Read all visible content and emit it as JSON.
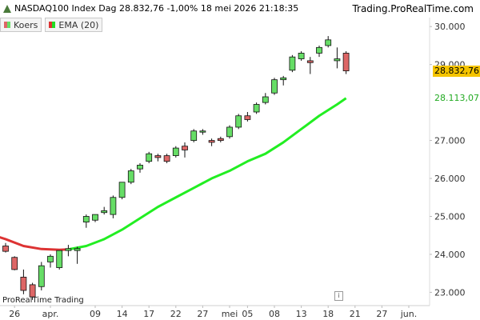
{
  "header": {
    "instrument": "NASDAQ100 Index Dag",
    "last": "28.832,76",
    "change": "-1,00%",
    "datetime": "18 mei 2026 21:18:35",
    "site": "Trading.ProRealTime.com"
  },
  "legend": [
    {
      "label": "Koers",
      "color": "#5bd15b"
    },
    {
      "label": "EMA (20)",
      "color": "#22dd22"
    }
  ],
  "footer": "ProRealTime Trading",
  "info_icon": "info-icon",
  "price_tags": {
    "last": {
      "text": "28.832,76",
      "value": 28832.76,
      "bg": "#f5c400",
      "fg": "#000000"
    },
    "ema": {
      "text": "28.113,07",
      "value": 28113.07,
      "bg": "#ffffff",
      "fg": "#22aa22"
    }
  },
  "colors": {
    "up": "#66dd66",
    "down": "#dd6666",
    "ema_up": "#22ee22",
    "ema_down": "#dd3333",
    "text": "#333333"
  },
  "chart_data": {
    "type": "candlestick",
    "ylim": [
      22750,
      30500
    ],
    "yticks": [
      {
        "v": 23000,
        "t": "23.000"
      },
      {
        "v": 24000,
        "t": "24.000"
      },
      {
        "v": 25000,
        "t": "25.000"
      },
      {
        "v": 26000,
        "t": "26.000"
      },
      {
        "v": 27000,
        "t": "27.000"
      },
      {
        "v": 29000,
        "t": "29.000"
      },
      {
        "v": 30000,
        "t": "30.000"
      }
    ],
    "xticks": [
      {
        "i": 1,
        "t": "26"
      },
      {
        "i": 5,
        "t": "apr."
      },
      {
        "i": 10,
        "t": "09"
      },
      {
        "i": 13,
        "t": "14"
      },
      {
        "i": 16,
        "t": "17"
      },
      {
        "i": 19,
        "t": "22"
      },
      {
        "i": 22,
        "t": "27"
      },
      {
        "i": 25,
        "t": "mei"
      },
      {
        "i": 27,
        "t": "05"
      },
      {
        "i": 30,
        "t": "08"
      },
      {
        "i": 33,
        "t": "13"
      },
      {
        "i": 36,
        "t": "18"
      },
      {
        "i": 39,
        "t": "21"
      },
      {
        "i": 42,
        "t": "27"
      },
      {
        "i": 45,
        "t": "jun."
      }
    ],
    "candles": [
      {
        "i": 0,
        "o": 24220,
        "h": 24300,
        "l": 24050,
        "c": 24080
      },
      {
        "i": 1,
        "o": 23920,
        "h": 23950,
        "l": 23580,
        "c": 23600
      },
      {
        "i": 2,
        "o": 23400,
        "h": 23600,
        "l": 22950,
        "c": 23050
      },
      {
        "i": 3,
        "o": 23200,
        "h": 23250,
        "l": 22800,
        "c": 22880
      },
      {
        "i": 4,
        "o": 23150,
        "h": 23800,
        "l": 23050,
        "c": 23700
      },
      {
        "i": 5,
        "o": 23800,
        "h": 24000,
        "l": 23650,
        "c": 23950
      },
      {
        "i": 6,
        "o": 23650,
        "h": 24100,
        "l": 23600,
        "c": 24100
      },
      {
        "i": 7,
        "o": 24100,
        "h": 24250,
        "l": 23950,
        "c": 24150
      },
      {
        "i": 8,
        "o": 24100,
        "h": 24200,
        "l": 23750,
        "c": 24150
      },
      {
        "i": 9,
        "o": 24850,
        "h": 25050,
        "l": 24700,
        "c": 25000
      },
      {
        "i": 10,
        "o": 24900,
        "h": 25050,
        "l": 24850,
        "c": 25050
      },
      {
        "i": 11,
        "o": 25100,
        "h": 25250,
        "l": 25050,
        "c": 25150
      },
      {
        "i": 12,
        "o": 25050,
        "h": 25550,
        "l": 24950,
        "c": 25500
      },
      {
        "i": 13,
        "o": 25500,
        "h": 25900,
        "l": 25450,
        "c": 25900
      },
      {
        "i": 14,
        "o": 25900,
        "h": 26250,
        "l": 25850,
        "c": 26200
      },
      {
        "i": 15,
        "o": 26250,
        "h": 26400,
        "l": 26150,
        "c": 26350
      },
      {
        "i": 16,
        "o": 26450,
        "h": 26700,
        "l": 26400,
        "c": 26650
      },
      {
        "i": 17,
        "o": 26600,
        "h": 26650,
        "l": 26450,
        "c": 26550
      },
      {
        "i": 18,
        "o": 26600,
        "h": 26650,
        "l": 26400,
        "c": 26450
      },
      {
        "i": 19,
        "o": 26600,
        "h": 26850,
        "l": 26550,
        "c": 26800
      },
      {
        "i": 20,
        "o": 26850,
        "h": 26950,
        "l": 26550,
        "c": 26750
      },
      {
        "i": 21,
        "o": 27000,
        "h": 27300,
        "l": 26950,
        "c": 27250
      },
      {
        "i": 22,
        "o": 27250,
        "h": 27300,
        "l": 27150,
        "c": 27250
      },
      {
        "i": 23,
        "o": 27000,
        "h": 27050,
        "l": 26850,
        "c": 26950
      },
      {
        "i": 24,
        "o": 27050,
        "h": 27100,
        "l": 26950,
        "c": 27000
      },
      {
        "i": 25,
        "o": 27100,
        "h": 27400,
        "l": 27050,
        "c": 27350
      },
      {
        "i": 26,
        "o": 27350,
        "h": 27700,
        "l": 27300,
        "c": 27650
      },
      {
        "i": 27,
        "o": 27650,
        "h": 27750,
        "l": 27500,
        "c": 27550
      },
      {
        "i": 28,
        "o": 27750,
        "h": 28000,
        "l": 27700,
        "c": 27950
      },
      {
        "i": 29,
        "o": 28000,
        "h": 28250,
        "l": 27950,
        "c": 28150
      },
      {
        "i": 30,
        "o": 28250,
        "h": 28650,
        "l": 28200,
        "c": 28600
      },
      {
        "i": 31,
        "o": 28600,
        "h": 28700,
        "l": 28450,
        "c": 28650
      },
      {
        "i": 32,
        "o": 28850,
        "h": 29250,
        "l": 28800,
        "c": 29200
      },
      {
        "i": 33,
        "o": 29150,
        "h": 29350,
        "l": 29100,
        "c": 29300
      },
      {
        "i": 34,
        "o": 29100,
        "h": 29200,
        "l": 28750,
        "c": 29050
      },
      {
        "i": 35,
        "o": 29300,
        "h": 29500,
        "l": 29200,
        "c": 29450
      },
      {
        "i": 36,
        "o": 29500,
        "h": 29750,
        "l": 29450,
        "c": 29650
      },
      {
        "i": 37,
        "o": 29100,
        "h": 29450,
        "l": 28900,
        "c": 29150
      },
      {
        "i": 38,
        "o": 29300,
        "h": 29350,
        "l": 28750,
        "c": 28833
      }
    ],
    "ema": [
      {
        "i": -2,
        "v": 24550
      },
      {
        "i": 0,
        "v": 24400
      },
      {
        "i": 2,
        "v": 24220
      },
      {
        "i": 4,
        "v": 24140
      },
      {
        "i": 6,
        "v": 24120
      },
      {
        "i": 7,
        "v": 24130
      },
      {
        "i": 9,
        "v": 24220
      },
      {
        "i": 11,
        "v": 24400
      },
      {
        "i": 13,
        "v": 24650
      },
      {
        "i": 15,
        "v": 24950
      },
      {
        "i": 17,
        "v": 25250
      },
      {
        "i": 19,
        "v": 25500
      },
      {
        "i": 21,
        "v": 25750
      },
      {
        "i": 23,
        "v": 26000
      },
      {
        "i": 25,
        "v": 26200
      },
      {
        "i": 27,
        "v": 26450
      },
      {
        "i": 29,
        "v": 26650
      },
      {
        "i": 31,
        "v": 26950
      },
      {
        "i": 33,
        "v": 27300
      },
      {
        "i": 35,
        "v": 27650
      },
      {
        "i": 37,
        "v": 27950
      },
      {
        "i": 38,
        "v": 28113
      }
    ]
  }
}
